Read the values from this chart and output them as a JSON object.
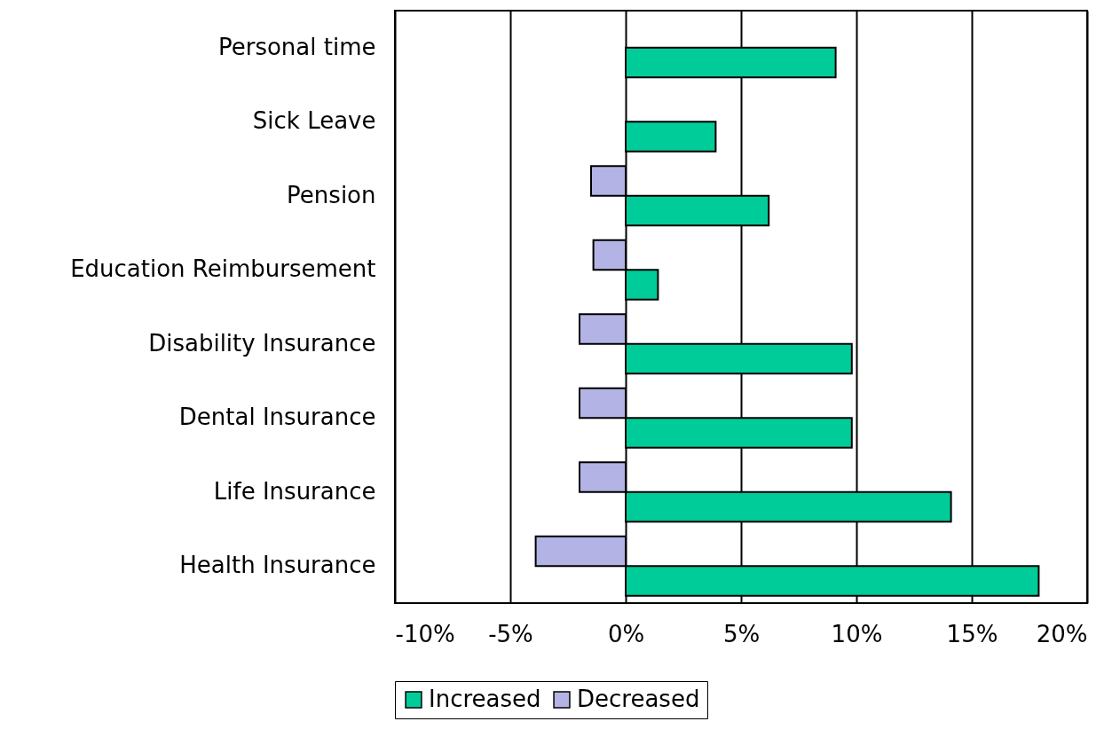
{
  "chart_data": {
    "type": "bar",
    "orientation": "horizontal",
    "categories": [
      "Personal time",
      "Sick Leave",
      "Pension",
      "Education Reimbursement",
      "Disability Insurance",
      "Dental Insurance",
      "Life Insurance",
      "Health Insurance"
    ],
    "series": [
      {
        "name": "Increased",
        "color": "#00cc99",
        "values": [
          9.1,
          3.9,
          6.2,
          1.4,
          9.8,
          9.8,
          14.1,
          17.9
        ]
      },
      {
        "name": "Decreased",
        "color": "#b3b3e6",
        "values": [
          null,
          null,
          -1.5,
          -1.4,
          -2.0,
          -2.0,
          -2.0,
          -3.9
        ]
      }
    ],
    "xlim": [
      -10,
      20
    ],
    "xticks": [
      {
        "value": -10,
        "label": "-10%"
      },
      {
        "value": -5,
        "label": "-5%"
      },
      {
        "value": 0,
        "label": "0%"
      },
      {
        "value": 5,
        "label": "5%"
      },
      {
        "value": 10,
        "label": "10%"
      },
      {
        "value": 15,
        "label": "15%"
      },
      {
        "value": 20,
        "label": "20%"
      }
    ],
    "grid": "x",
    "legend": "bottom"
  }
}
